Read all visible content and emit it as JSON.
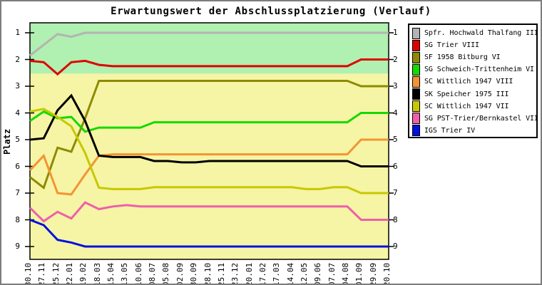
{
  "chart_data": {
    "type": "line",
    "title": "Erwartungswert der Abschlussplatzierung (Verlauf)",
    "ylabel": "Platz",
    "grid": false,
    "legend_position": "right-outside-top",
    "y_axis": {
      "inverted": true,
      "min": 0.63,
      "max": 9.48
    },
    "y_ticks": [
      1,
      2,
      3,
      4,
      5,
      6,
      7,
      8,
      9
    ],
    "bands": [
      {
        "from": 0.63,
        "to": 2.53,
        "color": "#b0f0b0"
      },
      {
        "from": 2.53,
        "to": 9.48,
        "color": "#f5f5a5"
      }
    ],
    "x_labels": [
      "30.10",
      "27.11",
      "25.12",
      "22.01",
      "19.02",
      "18.03",
      "15.04",
      "13.05",
      "10.06",
      "08.07",
      "05.08",
      "02.09",
      "30.09",
      "28.10",
      "25.11",
      "23.12",
      "20.01",
      "17.02",
      "17.03",
      "14.04",
      "12.05",
      "09.06",
      "07.07",
      "04.08",
      "01.09",
      "29.09",
      "20.10"
    ],
    "series": [
      {
        "name": "Spfr. Hochwald Thalfang III",
        "color": "#b4b4b4",
        "values": [
          1.85,
          1.45,
          1.05,
          1.15,
          1.0,
          1.0,
          1.0,
          1.0,
          1.0,
          1.0,
          1.0,
          1.0,
          1.0,
          1.0,
          1.0,
          1.0,
          1.0,
          1.0,
          1.0,
          1.0,
          1.0,
          1.0,
          1.0,
          1.0,
          1.0,
          1.0,
          1.0
        ]
      },
      {
        "name": "SG Trier VIII",
        "color": "#e00000",
        "values": [
          2.05,
          2.1,
          2.55,
          2.1,
          2.05,
          2.2,
          2.25,
          2.25,
          2.25,
          2.25,
          2.25,
          2.25,
          2.25,
          2.25,
          2.25,
          2.25,
          2.25,
          2.25,
          2.25,
          2.25,
          2.25,
          2.25,
          2.25,
          2.25,
          2.0,
          2.0,
          2.0
        ]
      },
      {
        "name": "SF 1958 Bitburg VI",
        "color": "#8e8a00",
        "values": [
          6.4,
          6.8,
          5.3,
          5.45,
          4.2,
          2.8,
          2.8,
          2.8,
          2.8,
          2.8,
          2.8,
          2.8,
          2.8,
          2.8,
          2.8,
          2.8,
          2.8,
          2.8,
          2.8,
          2.8,
          2.8,
          2.8,
          2.8,
          2.8,
          3.0,
          3.0,
          3.0
        ]
      },
      {
        "name": "SG Schweich-Trittenheim VI",
        "color": "#15d900",
        "values": [
          4.3,
          3.95,
          4.2,
          4.15,
          4.7,
          4.55,
          4.55,
          4.55,
          4.55,
          4.35,
          4.35,
          4.35,
          4.35,
          4.35,
          4.35,
          4.35,
          4.35,
          4.35,
          4.35,
          4.35,
          4.35,
          4.35,
          4.35,
          4.35,
          4.0,
          4.0,
          4.0
        ]
      },
      {
        "name": "SC Wittlich 1947 VIII",
        "color": "#f59333",
        "values": [
          6.15,
          5.6,
          7.0,
          7.05,
          6.3,
          5.6,
          5.55,
          5.55,
          5.55,
          5.55,
          5.55,
          5.55,
          5.55,
          5.55,
          5.55,
          5.55,
          5.55,
          5.55,
          5.55,
          5.55,
          5.55,
          5.55,
          5.55,
          5.55,
          5.0,
          5.0,
          5.0
        ]
      },
      {
        "name": "SK Speicher 1975 III",
        "color": "#000000",
        "values": [
          5.0,
          4.95,
          3.9,
          3.35,
          4.3,
          5.6,
          5.65,
          5.65,
          5.65,
          5.8,
          5.8,
          5.85,
          5.85,
          5.8,
          5.8,
          5.8,
          5.8,
          5.8,
          5.8,
          5.8,
          5.8,
          5.8,
          5.8,
          5.8,
          6.0,
          6.0,
          6.0
        ]
      },
      {
        "name": "SC Wittlich 1947 VII",
        "color": "#c8c800",
        "values": [
          3.95,
          3.85,
          4.15,
          4.5,
          5.5,
          6.8,
          6.85,
          6.85,
          6.85,
          6.78,
          6.78,
          6.78,
          6.78,
          6.78,
          6.78,
          6.78,
          6.78,
          6.78,
          6.78,
          6.78,
          6.85,
          6.85,
          6.78,
          6.78,
          7.0,
          7.0,
          7.0
        ]
      },
      {
        "name": "SG PST-Trier/Bernkastel VII",
        "color": "#ef5fa8",
        "values": [
          7.55,
          8.05,
          7.7,
          7.95,
          7.35,
          7.6,
          7.5,
          7.45,
          7.5,
          7.5,
          7.5,
          7.5,
          7.5,
          7.5,
          7.5,
          7.5,
          7.5,
          7.5,
          7.5,
          7.5,
          7.5,
          7.5,
          7.5,
          7.5,
          8.0,
          8.0,
          8.0
        ]
      },
      {
        "name": "IGS Trier IV",
        "color": "#0010e0",
        "values": [
          8.0,
          8.2,
          8.75,
          8.85,
          9.0,
          9.0,
          9.0,
          9.0,
          9.0,
          9.0,
          9.0,
          9.0,
          9.0,
          9.0,
          9.0,
          9.0,
          9.0,
          9.0,
          9.0,
          9.0,
          9.0,
          9.0,
          9.0,
          9.0,
          9.0,
          9.0,
          9.0
        ]
      }
    ]
  }
}
